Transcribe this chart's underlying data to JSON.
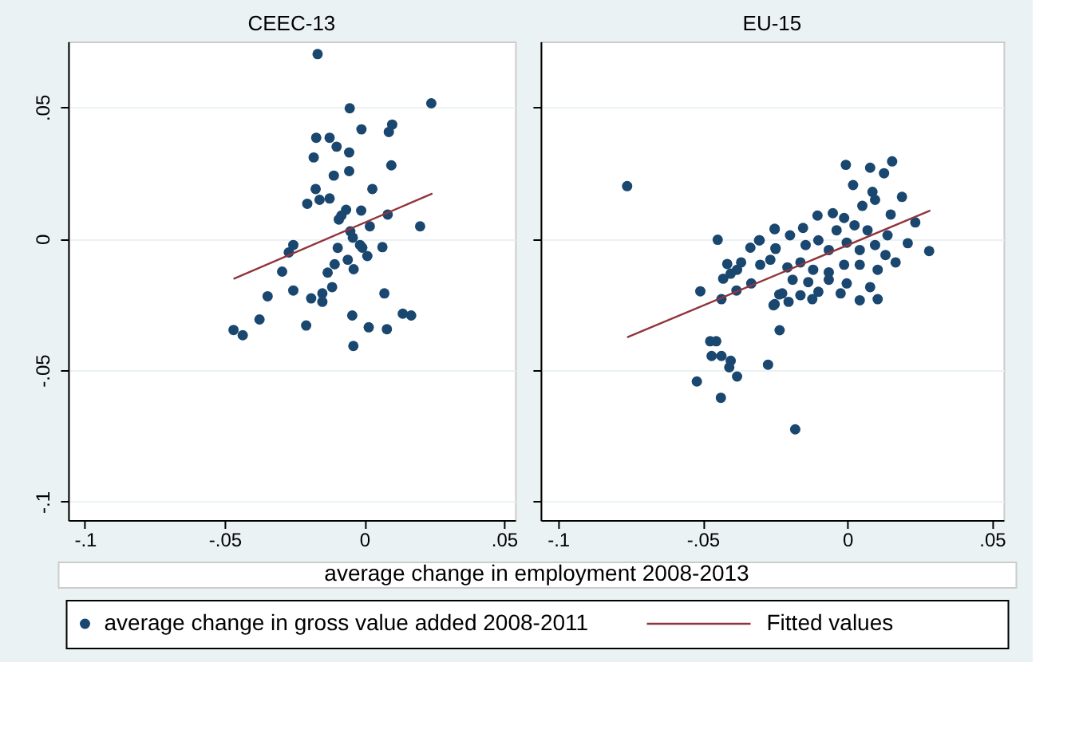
{
  "chart_data": [
    {
      "type": "scatter",
      "title": "CEEC-13",
      "xlabel": "average change in employment 2008-2013",
      "xlim": [
        -0.106,
        0.054
      ],
      "ylim": [
        -0.107,
        0.075
      ],
      "xticks": [
        {
          "value": -0.1,
          "label": "-.1"
        },
        {
          "value": -0.05,
          "label": "-.05"
        },
        0,
        {
          "value": 0.05,
          "label": ".05"
        }
      ],
      "yticks": [
        {
          "value": -0.1,
          "label": "-.1"
        },
        {
          "value": -0.05,
          "label": "-.05"
        },
        0,
        {
          "value": 0.05,
          "label": ".05"
        }
      ],
      "grid": "y",
      "legend": "bottom",
      "series": [
        {
          "name": "average change in gross value added 2008-2011",
          "marker": "circle",
          "color": "#1a476f",
          "x": [
            -0.0167,
            0.024,
            -0.0052,
            -0.001,
            0.01,
            0.0088,
            -0.0172,
            -0.0124,
            -0.0099,
            -0.0054,
            -0.0181,
            0.0097,
            -0.0054,
            -0.0109,
            0.0029,
            -0.0174,
            -0.0204,
            -0.016,
            -0.0124,
            -0.0065,
            -0.0011,
            -0.0091,
            -0.0082,
            0.0084,
            0.02,
            0.002,
            -0.005,
            -0.0041,
            -0.0015,
            -0.0007,
            -0.0254,
            -0.027,
            -0.0095,
            0.0065,
            0.0011,
            -0.0059,
            -0.0106,
            -0.0038,
            -0.0294,
            -0.0131,
            -0.0254,
            -0.0115,
            -0.015,
            -0.019,
            -0.015,
            -0.0346,
            0.0072,
            -0.0375,
            -0.0208,
            -0.0043,
            0.0138,
            0.0168,
            0.0016,
            0.0081,
            -0.0468,
            -0.0435,
            -0.0039
          ],
          "values": [
            0.0702,
            0.0515,
            0.0496,
            0.0416,
            0.0434,
            0.0406,
            0.0384,
            0.0384,
            0.035,
            0.0328,
            0.0309,
            0.0279,
            0.0257,
            0.024,
            0.0189,
            0.0189,
            0.0133,
            0.0148,
            0.0153,
            0.011,
            0.0107,
            0.0073,
            0.0088,
            0.0092,
            0.0047,
            0.0047,
            0.0028,
            0.0004,
            -0.0024,
            -0.0034,
            -0.0024,
            -0.0052,
            -0.0035,
            -0.0032,
            -0.0066,
            -0.008,
            -0.0097,
            -0.0116,
            -0.0125,
            -0.0129,
            -0.0197,
            -0.0184,
            -0.0208,
            -0.0227,
            -0.024,
            -0.0219,
            -0.0208,
            -0.0307,
            -0.033,
            -0.0292,
            -0.0285,
            -0.0292,
            -0.0337,
            -0.0344,
            -0.0347,
            -0.0367,
            -0.0408
          ]
        },
        {
          "name": "Fitted values",
          "type": "line",
          "color": "#90353b",
          "line_style": "solid",
          "x": [
            -0.0468,
            0.0244
          ],
          "values": [
            -0.0153,
            0.0172
          ]
        }
      ]
    },
    {
      "type": "scatter",
      "title": "EU-15",
      "xlim": [
        -0.106,
        0.054
      ],
      "ylim": [
        -0.107,
        0.075
      ],
      "xticks": [
        {
          "value": -0.1,
          "label": "-.1"
        },
        {
          "value": -0.05,
          "label": "-.05"
        },
        0,
        {
          "value": 0.05,
          "label": ".05"
        }
      ],
      "yticks": [
        {
          "value": -0.1,
          "label": "-.1"
        },
        {
          "value": -0.05,
          "label": "-.05"
        },
        0,
        {
          "value": 0.05,
          "label": ".05"
        }
      ],
      "tick_labels": "x",
      "grid": "y",
      "legend": "bottom",
      "series": [
        {
          "name": "average change in gross value added 2008-2011",
          "marker": "circle",
          "color": "#1a476f",
          "x": [
            -0.0761,
            -0.0448,
            -0.0508,
            -0.0435,
            -0.0383,
            -0.0429,
            -0.0415,
            -0.0367,
            -0.0381,
            -0.0403,
            -0.0335,
            -0.0303,
            -0.0251,
            -0.0248,
            -0.0301,
            -0.0266,
            -0.0235,
            -0.0255,
            -0.0234,
            -0.0474,
            -0.0453,
            -0.0469,
            -0.0435,
            -0.0403,
            -0.0408,
            -0.0381,
            -0.0274,
            -0.052,
            -0.0437,
            -0.018,
            -0.0005,
            0.0079,
            0.0155,
            0.0127,
            0.002,
            0.0087,
            0.0096,
            0.0189,
            -0.0103,
            -0.005,
            -0.0011,
            0.0052,
            0.015,
            0.0235,
            0.0283,
            0.0209,
            0.0139,
            -0.0153,
            -0.0251,
            -0.0305,
            -0.0248,
            -0.0198,
            -0.0144,
            -0.01,
            -0.0064,
            -0.0002,
            0.0043,
            0.0096,
            0.0132,
            0.0167,
            0.0105,
            0.0043,
            -0.0011,
            -0.0064,
            -0.0118,
            -0.0162,
            -0.0207,
            -0.0135,
            -0.0189,
            -0.0064,
            -0.0002,
            0.0079,
            0.0105,
            0.0043,
            -0.0023,
            -0.01,
            -0.0162,
            -0.0225,
            -0.0251,
            -0.0203,
            -0.0121,
            -0.0332,
            0.0025,
            0.007,
            -0.0037
          ],
          "values": [
            0.02,
            -0.0004,
            -0.02,
            -0.023,
            -0.0197,
            -0.0152,
            -0.0096,
            -0.009,
            -0.0118,
            -0.0133,
            -0.0034,
            -0.0006,
            0.0036,
            -0.0036,
            -0.0099,
            -0.008,
            -0.0212,
            -0.0253,
            -0.0348,
            -0.039,
            -0.039,
            -0.0446,
            -0.0446,
            -0.0464,
            -0.0489,
            -0.0524,
            -0.0479,
            -0.0543,
            -0.0605,
            -0.0725,
            0.0281,
            0.027,
            0.0294,
            0.0249,
            0.0204,
            0.0178,
            0.0148,
            0.0159,
            0.0088,
            0.0097,
            0.0079,
            0.0125,
            0.0092,
            0.0062,
            -0.0047,
            -0.0017,
            0.0013,
            0.0041,
            0.0038,
            -0.0006,
            -0.0039,
            0.0013,
            -0.0024,
            -0.0006,
            -0.0043,
            -0.0015,
            -0.0043,
            -0.0024,
            -0.0062,
            -0.009,
            -0.0118,
            -0.0099,
            -0.0099,
            -0.0128,
            -0.0118,
            -0.009,
            -0.0109,
            -0.0165,
            -0.0156,
            -0.0156,
            -0.017,
            -0.0184,
            -0.023,
            -0.0234,
            -0.0208,
            -0.0202,
            -0.0215,
            -0.0208,
            -0.0249,
            -0.024,
            -0.023,
            -0.017,
            0.0051,
            0.0032,
            0.0032
          ]
        },
        {
          "name": "Fitted values",
          "type": "line",
          "color": "#90353b",
          "line_style": "solid",
          "x": [
            -0.0761,
            0.0287
          ],
          "values": [
            -0.0375,
            0.0107
          ]
        }
      ]
    }
  ]
}
